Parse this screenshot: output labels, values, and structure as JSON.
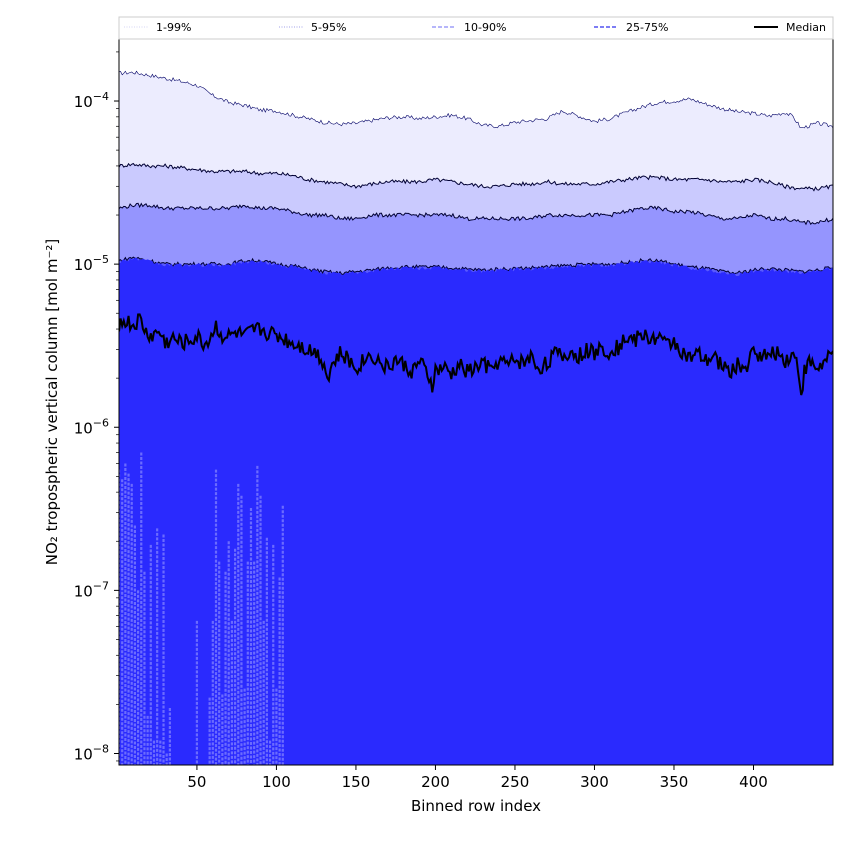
{
  "chart_data": {
    "type": "area",
    "xlabel": "Binned row index",
    "ylabel": "NO₂ tropospheric vertical column [mol m⁻²]",
    "yscale": "log",
    "xlim": [
      1,
      450
    ],
    "ylim": [
      8.5e-09,
      0.00024
    ],
    "x_ticks": [
      50,
      100,
      150,
      200,
      250,
      300,
      350,
      400
    ],
    "y_ticks": [
      {
        "value": 1e-08,
        "mantissa": "10",
        "exp": "−8"
      },
      {
        "value": 1e-07,
        "mantissa": "10",
        "exp": "−7"
      },
      {
        "value": 1e-06,
        "mantissa": "10",
        "exp": "−6"
      },
      {
        "value": 1e-05,
        "mantissa": "10",
        "exp": "−5"
      },
      {
        "value": 0.0001,
        "mantissa": "10",
        "exp": "−4"
      }
    ],
    "legend_placement": "top, above plot",
    "bands": [
      {
        "name": "1-99%",
        "color": "#ececfe",
        "line_style": "dotted",
        "lower": {
          "x": [
            1,
            3,
            5,
            7,
            9,
            11,
            13,
            15,
            17,
            19,
            21,
            23,
            25,
            27,
            29,
            31,
            33,
            50,
            58,
            60,
            62,
            64,
            66,
            68,
            70,
            72,
            74,
            76,
            78,
            80,
            82,
            84,
            86,
            88,
            90,
            92,
            94,
            96,
            98,
            100,
            102,
            104
          ],
          "y": [
            5.5e-07,
            4.8e-07,
            6e-07,
            5.2e-07,
            4.5e-07,
            2.5e-07,
            1e-07,
            7e-07,
            1.3e-07,
            1.7e-08,
            1.9e-07,
            1.2e-08,
            2.4e-07,
            1.2e-08,
            2.2e-07,
            1e-08,
            1.9e-08,
            6.5e-08,
            2.2e-08,
            6.5e-08,
            5.5e-07,
            1.5e-07,
            2.3e-08,
            1.3e-07,
            2e-07,
            6.5e-08,
            1.8e-07,
            4.5e-07,
            3.8e-07,
            2.5e-08,
            1.5e-07,
            3.2e-07,
            1.5e-07,
            5.8e-07,
            3.8e-07,
            6.5e-08,
            2.1e-07,
            1.2e-08,
            1.9e-07,
            2.5e-08,
            1.2e-07,
            3.3e-07
          ]
        },
        "upper": {
          "x": [
            1,
            10,
            20,
            30,
            40,
            50,
            60,
            70,
            80,
            90,
            100,
            110,
            120,
            130,
            140,
            150,
            160,
            170,
            180,
            190,
            200,
            210,
            220,
            230,
            240,
            250,
            260,
            270,
            280,
            290,
            300,
            310,
            320,
            330,
            340,
            350,
            360,
            370,
            380,
            390,
            400,
            410,
            420,
            425,
            430,
            440,
            450
          ],
          "y": [
            0.000148,
            0.00015,
            0.000144,
            0.000138,
            0.000132,
            0.000125,
            0.000108,
            9.8e-05,
            9.4e-05,
            8.8e-05,
            8.7e-05,
            8.2e-05,
            7.8e-05,
            7.4e-05,
            7.2e-05,
            7.3e-05,
            7.6e-05,
            7.9e-05,
            8e-05,
            7.8e-05,
            8e-05,
            8.2e-05,
            7.8e-05,
            7.1e-05,
            7e-05,
            7.4e-05,
            7.6e-05,
            7.8e-05,
            8.7e-05,
            8.1e-05,
            7.5e-05,
            7.8e-05,
            8.5e-05,
            9.2e-05,
            9.8e-05,
            0.0001,
            0.000103,
            9.6e-05,
            9e-05,
            8.6e-05,
            8.4e-05,
            8.1e-05,
            8.5e-05,
            8e-05,
            6.8e-05,
            7.3e-05,
            7e-05
          ]
        }
      },
      {
        "name": "5-95%",
        "color": "#cacafe",
        "line_style": "dotted",
        "lower": {
          "x": [
            1,
            450
          ],
          "y": [
            8.5e-09,
            8.5e-09
          ]
        },
        "upper": {
          "x": [
            1,
            10,
            20,
            30,
            40,
            50,
            60,
            70,
            80,
            90,
            100,
            110,
            120,
            130,
            140,
            150,
            160,
            170,
            180,
            190,
            200,
            210,
            220,
            230,
            240,
            250,
            260,
            270,
            280,
            290,
            300,
            310,
            320,
            330,
            340,
            350,
            360,
            370,
            380,
            390,
            400,
            410,
            420,
            430,
            440,
            450
          ],
          "y": [
            4e-05,
            4.1e-05,
            4e-05,
            4e-05,
            3.9e-05,
            3.8e-05,
            3.7e-05,
            3.7e-05,
            3.7e-05,
            3.6e-05,
            3.6e-05,
            3.5e-05,
            3.3e-05,
            3.2e-05,
            3.1e-05,
            3e-05,
            3.1e-05,
            3.2e-05,
            3.2e-05,
            3.2e-05,
            3.3e-05,
            3.2e-05,
            3.1e-05,
            3e-05,
            3e-05,
            3.1e-05,
            3.1e-05,
            3.2e-05,
            3.1e-05,
            3.1e-05,
            3.1e-05,
            3.2e-05,
            3.3e-05,
            3.4e-05,
            3.4e-05,
            3.3e-05,
            3.3e-05,
            3.3e-05,
            3.2e-05,
            3.2e-05,
            3.3e-05,
            3.2e-05,
            3e-05,
            2.9e-05,
            2.9e-05,
            3e-05
          ]
        }
      },
      {
        "name": "10-90%",
        "color": "#9595fe",
        "line_style": "dashed",
        "lower": {
          "x": [
            1,
            450
          ],
          "y": [
            8.5e-09,
            8.5e-09
          ]
        },
        "upper": {
          "x": [
            1,
            10,
            20,
            30,
            40,
            50,
            60,
            70,
            80,
            90,
            100,
            110,
            120,
            130,
            140,
            150,
            160,
            170,
            180,
            190,
            200,
            210,
            220,
            230,
            240,
            250,
            260,
            270,
            280,
            290,
            300,
            310,
            320,
            330,
            340,
            350,
            360,
            370,
            380,
            390,
            400,
            410,
            420,
            430,
            440,
            450
          ],
          "y": [
            2.2e-05,
            2.3e-05,
            2.3e-05,
            2.2e-05,
            2.2e-05,
            2.2e-05,
            2.2e-05,
            2.2e-05,
            2.3e-05,
            2.2e-05,
            2.2e-05,
            2.1e-05,
            2e-05,
            2e-05,
            1.9e-05,
            1.9e-05,
            2e-05,
            2e-05,
            2e-05,
            2e-05,
            2e-05,
            2e-05,
            1.9e-05,
            1.9e-05,
            1.9e-05,
            1.9e-05,
            1.9e-05,
            2e-05,
            2e-05,
            2e-05,
            2e-05,
            2e-05,
            2.1e-05,
            2.2e-05,
            2.2e-05,
            2.1e-05,
            2.1e-05,
            2e-05,
            1.9e-05,
            1.9e-05,
            2e-05,
            1.9e-05,
            1.9e-05,
            1.8e-05,
            1.8e-05,
            1.9e-05
          ]
        }
      },
      {
        "name": "25-75%",
        "color": "#5a5afe",
        "line_style": "dashed",
        "lower": {
          "x": [
            1,
            450
          ],
          "y": [
            8.5e-09,
            8.5e-09
          ]
        },
        "upper": {
          "x": [
            1,
            10,
            20,
            30,
            40,
            50,
            60,
            70,
            80,
            90,
            100,
            110,
            120,
            130,
            140,
            150,
            160,
            170,
            180,
            190,
            200,
            210,
            220,
            230,
            240,
            250,
            260,
            270,
            280,
            290,
            300,
            310,
            320,
            330,
            340,
            350,
            360,
            370,
            380,
            390,
            400,
            410,
            420,
            430,
            440,
            450
          ],
          "y": [
            1.05e-05,
            1.1e-05,
            1.05e-05,
            1e-05,
            1e-05,
            1e-05,
            1e-05,
            1e-05,
            1.05e-05,
            1.05e-05,
            1e-05,
            9.8e-06,
            9.3e-06,
            9e-06,
            8.8e-06,
            9e-06,
            9.2e-06,
            9.5e-06,
            9.6e-06,
            9.6e-06,
            9.6e-06,
            9.5e-06,
            9.3e-06,
            9.2e-06,
            9.3e-06,
            9.4e-06,
            9.5e-06,
            9.6e-06,
            9.8e-06,
            9.9e-06,
            1e-05,
            1e-05,
            1.02e-05,
            1.05e-05,
            1.05e-05,
            1e-05,
            9.6e-06,
            9.4e-06,
            9e-06,
            8.8e-06,
            9.2e-06,
            9.4e-06,
            9.2e-06,
            9e-06,
            9.2e-06,
            9.5e-06
          ]
        }
      }
    ],
    "bands_fill_base": "#2a2afe",
    "median": {
      "name": "Median",
      "color": "#000000",
      "x": [
        1,
        5,
        10,
        14,
        18,
        22,
        26,
        30,
        35,
        40,
        45,
        50,
        55,
        60,
        62,
        65,
        70,
        75,
        80,
        85,
        90,
        95,
        100,
        105,
        110,
        115,
        120,
        125,
        130,
        132,
        135,
        140,
        145,
        150,
        155,
        160,
        165,
        170,
        175,
        180,
        185,
        190,
        195,
        198,
        200,
        205,
        210,
        215,
        220,
        225,
        230,
        235,
        240,
        245,
        250,
        255,
        260,
        265,
        270,
        275,
        280,
        285,
        290,
        295,
        300,
        305,
        310,
        315,
        320,
        325,
        330,
        335,
        340,
        345,
        350,
        355,
        360,
        365,
        370,
        375,
        380,
        385,
        390,
        395,
        400,
        405,
        410,
        415,
        420,
        425,
        428,
        430,
        432,
        435,
        440,
        445,
        450
      ],
      "y": [
        4.3e-06,
        4.5e-06,
        4.2e-06,
        4.6e-06,
        3.8e-06,
        3.6e-06,
        3.9e-06,
        3.3e-06,
        3.5e-06,
        3.3e-06,
        3.4e-06,
        3.6e-06,
        3.2e-06,
        3.8e-06,
        4.2e-06,
        3.7e-06,
        3.6e-06,
        3.8e-06,
        3.6e-06,
        3.9e-06,
        4e-06,
        3.8e-06,
        3.7e-06,
        3.5e-06,
        3.3e-06,
        3.2e-06,
        3e-06,
        2.9e-06,
        2.5e-06,
        2e-06,
        2.4e-06,
        2.8e-06,
        2.6e-06,
        2.3e-06,
        2.6e-06,
        2.8e-06,
        2.5e-06,
        2.3e-06,
        2.6e-06,
        2.4e-06,
        2.2e-06,
        2.5e-06,
        2.1e-06,
        1.8e-06,
        2.2e-06,
        2.3e-06,
        2.1e-06,
        2.4e-06,
        2.2e-06,
        2.3e-06,
        2.5e-06,
        2.2e-06,
        2.6e-06,
        2.4e-06,
        2.6e-06,
        2.5e-06,
        2.7e-06,
        2.3e-06,
        2.5e-06,
        2.8e-06,
        2.7e-06,
        2.9e-06,
        2.7e-06,
        3e-06,
        2.8e-06,
        3.1e-06,
        2.9e-06,
        3.1e-06,
        3.6e-06,
        3.4e-06,
        3.7e-06,
        3.5e-06,
        3.6e-06,
        3.2e-06,
        3.4e-06,
        2.9e-06,
        2.6e-06,
        2.8e-06,
        2.5e-06,
        2.7e-06,
        2.4e-06,
        2.2e-06,
        2.4e-06,
        2.3e-06,
        2.9e-06,
        2.8e-06,
        2.7e-06,
        2.9e-06,
        2.6e-06,
        2.8e-06,
        2.4e-06,
        1.6e-06,
        2.2e-06,
        2.5e-06,
        2.3e-06,
        2.5e-06,
        2.8e-06
      ]
    }
  }
}
